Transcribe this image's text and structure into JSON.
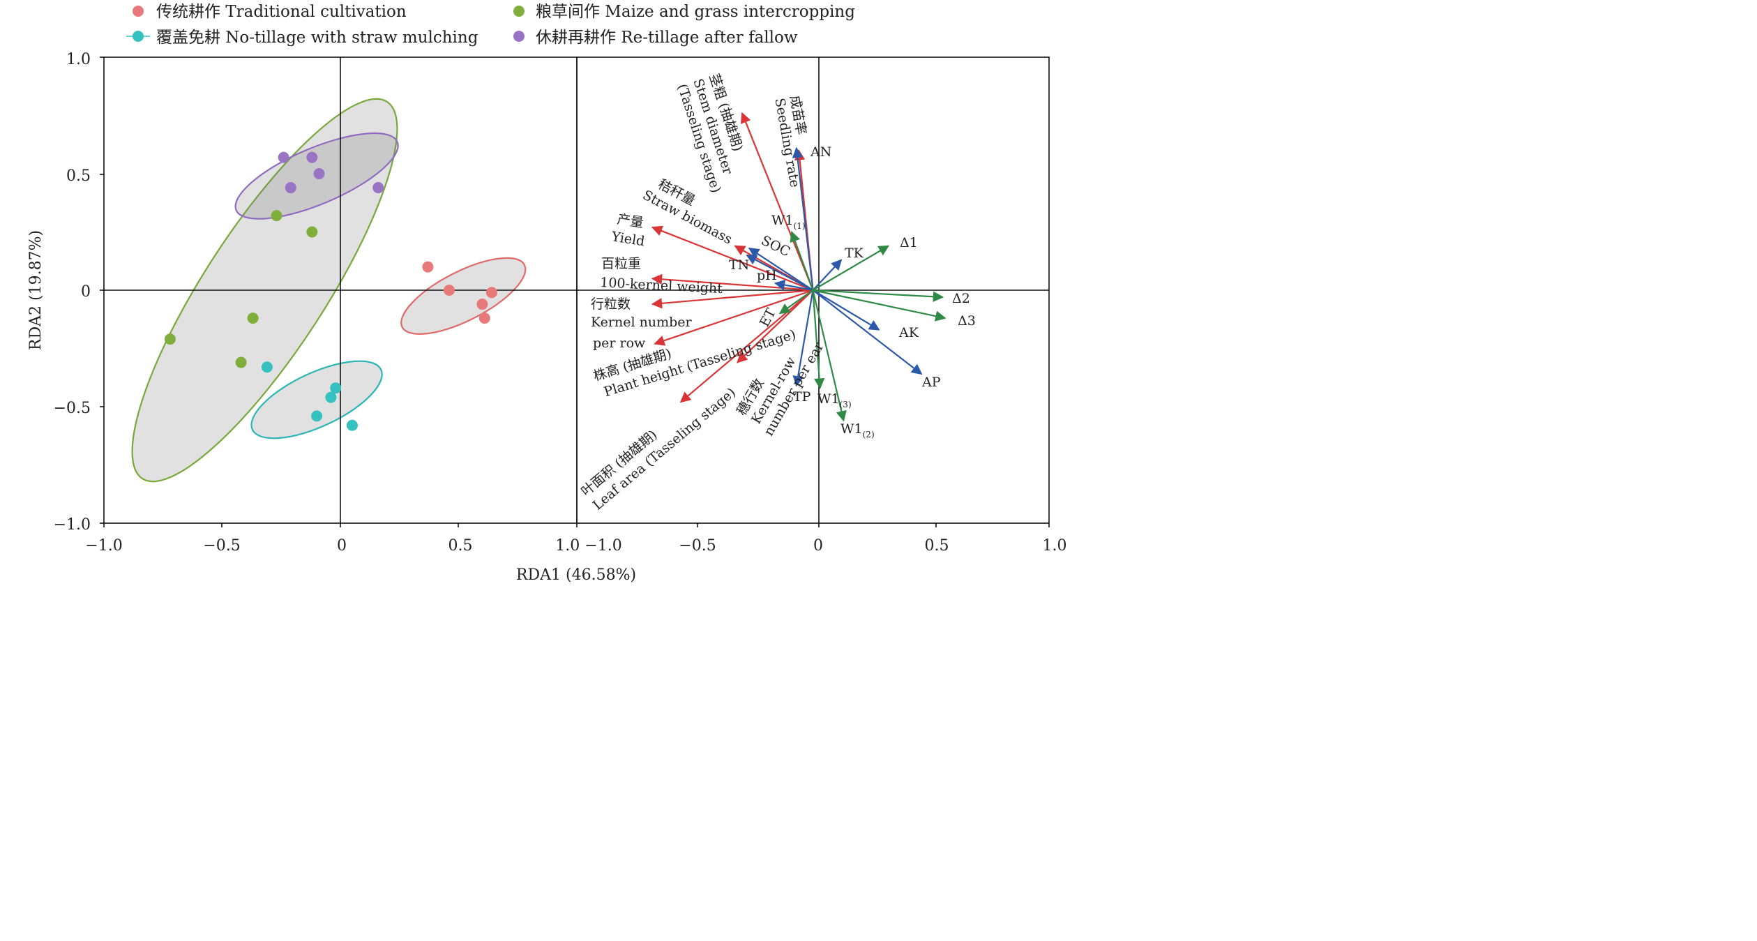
{
  "chart_data": [
    {
      "type": "scatter",
      "xlabel": "RDA1 (46.58%)",
      "ylabel": "RDA2 (19.87%)",
      "xlim": [
        -1.0,
        1.0
      ],
      "ylim": [
        -1.0,
        1.0
      ],
      "xticks": [
        "−1.0",
        "−0.5",
        "0",
        "0.5",
        "1.0"
      ],
      "yticks": [
        "1.0",
        "0.5",
        "0",
        "−0.5",
        "−1.0"
      ],
      "grid": false,
      "zero_lines": true,
      "legend_position": "top",
      "series": [
        {
          "name": "传统耕作 Traditional cultivation",
          "color": "#e8797a",
          "stroke": "#e06a6a",
          "points": [
            [
              0.37,
              0.1
            ],
            [
              0.46,
              0.0
            ],
            [
              0.6,
              -0.06
            ],
            [
              0.61,
              -0.12
            ],
            [
              0.64,
              -0.01
            ]
          ],
          "ellipse": {
            "cx": 0.52,
            "cy": -0.025,
            "rx": 0.29,
            "ry": 0.105,
            "angle_deg": -27
          }
        },
        {
          "name": "覆盖免耕 No-tillage with straw mulching",
          "color": "#35c1c0",
          "stroke": "#2bb6b5",
          "points": [
            [
              -0.31,
              -0.33
            ],
            [
              -0.1,
              -0.54
            ],
            [
              -0.04,
              -0.46
            ],
            [
              -0.02,
              -0.42
            ],
            [
              0.05,
              -0.58
            ]
          ],
          "ellipse": {
            "cx": -0.1,
            "cy": -0.47,
            "rx": 0.3,
            "ry": 0.115,
            "angle_deg": -25
          }
        },
        {
          "name": "粮草间作 Maize and grass intercropping",
          "color": "#7fae3a",
          "stroke": "#78a83a",
          "points": [
            [
              -0.72,
              -0.21
            ],
            [
              -0.42,
              -0.31
            ],
            [
              -0.37,
              -0.12
            ],
            [
              -0.27,
              0.32
            ],
            [
              -0.12,
              0.25
            ]
          ],
          "ellipse": {
            "cx": -0.32,
            "cy": 0.0,
            "rx": 0.95,
            "ry": 0.26,
            "angle_deg": -57
          }
        },
        {
          "name": "休耕再耕作 Re-tillage after fallow",
          "color": "#9a74c4",
          "stroke": "#8f6bbf",
          "points": [
            [
              -0.24,
              0.57
            ],
            [
              -0.21,
              0.44
            ],
            [
              -0.12,
              0.57
            ],
            [
              -0.09,
              0.5
            ],
            [
              0.16,
              0.44
            ]
          ],
          "ellipse": {
            "cx": -0.1,
            "cy": 0.49,
            "rx": 0.37,
            "ry": 0.12,
            "angle_deg": -23
          }
        }
      ]
    },
    {
      "type": "biplot",
      "xlim": [
        -1.0,
        1.0
      ],
      "ylim": [
        -1.0,
        1.0
      ],
      "xticks": [
        "1.0 −1.0",
        "−0.5",
        "0",
        "0.5",
        "1.0"
      ],
      "grid": false,
      "zero_lines": true,
      "vectors": [
        {
          "label": "茎粗 (抽雄期) Stem diameter (Tasseling stage)",
          "color": "#d93436",
          "x": -0.3,
          "y": 0.76
        },
        {
          "label": "成苗率 Seedling rate",
          "color": "#d93436",
          "x": -0.06,
          "y": 0.6
        },
        {
          "label": "秸秆量 Straw biomass",
          "color": "#d93436",
          "x": -0.33,
          "y": 0.19
        },
        {
          "label": "产量 Yield",
          "color": "#d93436",
          "x": -0.68,
          "y": 0.27
        },
        {
          "label": "百粒重 100-kernel weight",
          "color": "#d93436",
          "x": -0.68,
          "y": 0.05
        },
        {
          "label": "行粒数 Kernel number per row",
          "color": "#d93436",
          "x": -0.68,
          "y": -0.06
        },
        {
          "label": "株高 (抽雄期) Plant height (Tasseling stage)",
          "color": "#d93436",
          "x": -0.67,
          "y": -0.23
        },
        {
          "label": "叶面积 (抽雄期) Leaf area (Tasseling stage)",
          "color": "#d93436",
          "x": -0.56,
          "y": -0.48
        },
        {
          "label": "穗行数 Kernel-row number per ear",
          "color": "#d93436",
          "x": -0.32,
          "y": -0.31
        },
        {
          "label": "AN",
          "color": "#2b58a8",
          "x": -0.07,
          "y": 0.61
        },
        {
          "label": "SOC",
          "color": "#2b58a8",
          "x": -0.27,
          "y": 0.18
        },
        {
          "label": "TN",
          "color": "#2b58a8",
          "x": -0.28,
          "y": 0.15
        },
        {
          "label": "pH",
          "color": "#2b58a8",
          "x": -0.16,
          "y": 0.03
        },
        {
          "label": "TK",
          "color": "#2b58a8",
          "x": 0.12,
          "y": 0.13
        },
        {
          "label": "AK",
          "color": "#2b58a8",
          "x": 0.28,
          "y": -0.17
        },
        {
          "label": "AP",
          "color": "#2b58a8",
          "x": 0.46,
          "y": -0.36
        },
        {
          "label": "TP",
          "color": "#2b58a8",
          "x": -0.07,
          "y": -0.41
        },
        {
          "label": "W1(1)",
          "color": "#2f8a46",
          "x": -0.09,
          "y": 0.25
        },
        {
          "label": "ET",
          "color": "#2f8a46",
          "x": -0.14,
          "y": -0.1
        },
        {
          "label": "Δ1",
          "color": "#2f8a46",
          "x": 0.32,
          "y": 0.19
        },
        {
          "label": "Δ2",
          "color": "#2f8a46",
          "x": 0.55,
          "y": -0.03
        },
        {
          "label": "Δ3",
          "color": "#2f8a46",
          "x": 0.56,
          "y": -0.12
        },
        {
          "label": "W1(3)",
          "color": "#2f8a46",
          "x": 0.03,
          "y": -0.42
        },
        {
          "label": "W1(2)",
          "color": "#2f8a46",
          "x": 0.13,
          "y": -0.56
        }
      ]
    }
  ],
  "legend": {
    "items": [
      {
        "label": "传统耕作 Traditional cultivation",
        "color": "#e8797a"
      },
      {
        "label": "粮草间作 Maize and grass intercropping",
        "color": "#7fae3a"
      },
      {
        "label": "覆盖免耕 No-tillage with straw mulching",
        "color": "#35c1c0"
      },
      {
        "label": "休耕再耕作 Re-tillage after fallow",
        "color": "#9a74c4"
      }
    ]
  },
  "vector_labels": {
    "stem_cn": "茎粗 (抽雄期)",
    "stem_en1": "Stem diameter",
    "stem_en2": "(Tasseling stage)",
    "seedling_cn": "成苗率",
    "seedling_en": "Seedling rate",
    "straw_cn": "秸秆量",
    "straw_en": "Straw biomass",
    "yield_cn": "产量",
    "yield_en": "Yield",
    "kernel_w_cn": "百粒重",
    "kernel_w_en": "100-kernel weight",
    "kernel_n_cn": "行粒数",
    "kernel_n_en1": "Kernel number",
    "kernel_n_en2": "per row",
    "plant_h_cn": "株高 (抽雄期)",
    "plant_h_en": "Plant height (Tasseling stage)",
    "leaf_cn": "叶面积 (抽雄期)",
    "leaf_en": "Leaf area (Tasseling stage)",
    "ear_cn": "穗行数",
    "ear_en1": "Kernel-row",
    "ear_en2": "number per ear",
    "AN": "AN",
    "W1": "W1",
    "W1_sub1": "(1)",
    "W1_sub2": "(2)",
    "W1_sub3": "(3)",
    "SOC": "SOC",
    "TN": "TN",
    "pH": "pH",
    "TK": "TK",
    "ET": "ET",
    "d1": "Δ1",
    "d2": "Δ2",
    "d3": "Δ3",
    "AK": "AK",
    "AP": "AP",
    "TP": "TP"
  }
}
